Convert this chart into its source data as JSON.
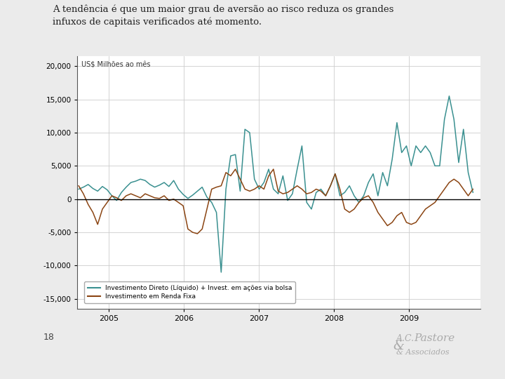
{
  "title_text": "A tendência é que um maior grau de aversão ao risco reduza os grandes\ninfuxos de capitais verificados até momento.",
  "subtitle_note": "US$ Milhões ao mês",
  "yticks": [
    20000,
    15000,
    10000,
    5000,
    0,
    -5000,
    -10000,
    -15000
  ],
  "ylim": [
    -16500,
    21500
  ],
  "xlim_start": 2004.58,
  "xlim_end": 2009.95,
  "xtick_labels": [
    "2005",
    "2006",
    "2007",
    "2008",
    "2009"
  ],
  "legend1": "Investimento Direto (Líquido) + Invest. em ações via bolsa",
  "legend2": "Investimento em Renda Fixa",
  "color_teal": "#3a9090",
  "color_brown": "#8B4513",
  "page_number": "18",
  "background_color": "#ebebeb",
  "chart_bg": "#ffffff",
  "header_bar_color": "#8ecfbf",
  "footer_bar_color": "#f4a090",
  "teal_series": [
    1500,
    1800,
    2200,
    1600,
    1200,
    1900,
    1400,
    500,
    -200,
    1000,
    1800,
    2500,
    2700,
    3000,
    2800,
    2200,
    1800,
    2100,
    2500,
    1900,
    2800,
    1500,
    700,
    100,
    600,
    1200,
    1800,
    300,
    -500,
    -2000,
    -11000,
    1500,
    6500,
    6700,
    1200,
    10500,
    10000,
    3000,
    1500,
    2500,
    4500,
    1500,
    800,
    3500,
    -200,
    800,
    4500,
    8000,
    -500,
    -1500,
    1000,
    1500,
    500,
    2000,
    3800,
    500,
    1000,
    2000,
    500,
    -500,
    500,
    2500,
    3800,
    500,
    4000,
    2000,
    6000,
    11500,
    7000,
    8000,
    5000,
    8000,
    7000,
    8000,
    7000,
    5000,
    5000,
    12000,
    15500,
    12000,
    5500,
    10500,
    4000,
    1000
  ],
  "brown_series": [
    2000,
    800,
    -800,
    -2000,
    -3800,
    -1500,
    -500,
    500,
    200,
    -200,
    500,
    800,
    500,
    200,
    800,
    500,
    200,
    100,
    500,
    -200,
    0,
    -500,
    -1000,
    -4500,
    -5000,
    -5200,
    -4500,
    -1500,
    1500,
    1800,
    2000,
    4000,
    3500,
    4500,
    3000,
    1500,
    1200,
    1500,
    2000,
    1500,
    3500,
    4500,
    1200,
    800,
    1000,
    1500,
    2000,
    1500,
    800,
    1000,
    1500,
    1200,
    500,
    2000,
    3800,
    1500,
    -1500,
    -2000,
    -1500,
    -500,
    200,
    500,
    -500,
    -2000,
    -3000,
    -4000,
    -3500,
    -2500,
    -2000,
    -3500,
    -3800,
    -3500,
    -2500,
    -1500,
    -1000,
    -500,
    500,
    1500,
    2500,
    3000,
    2500,
    1500,
    500,
    1500
  ]
}
